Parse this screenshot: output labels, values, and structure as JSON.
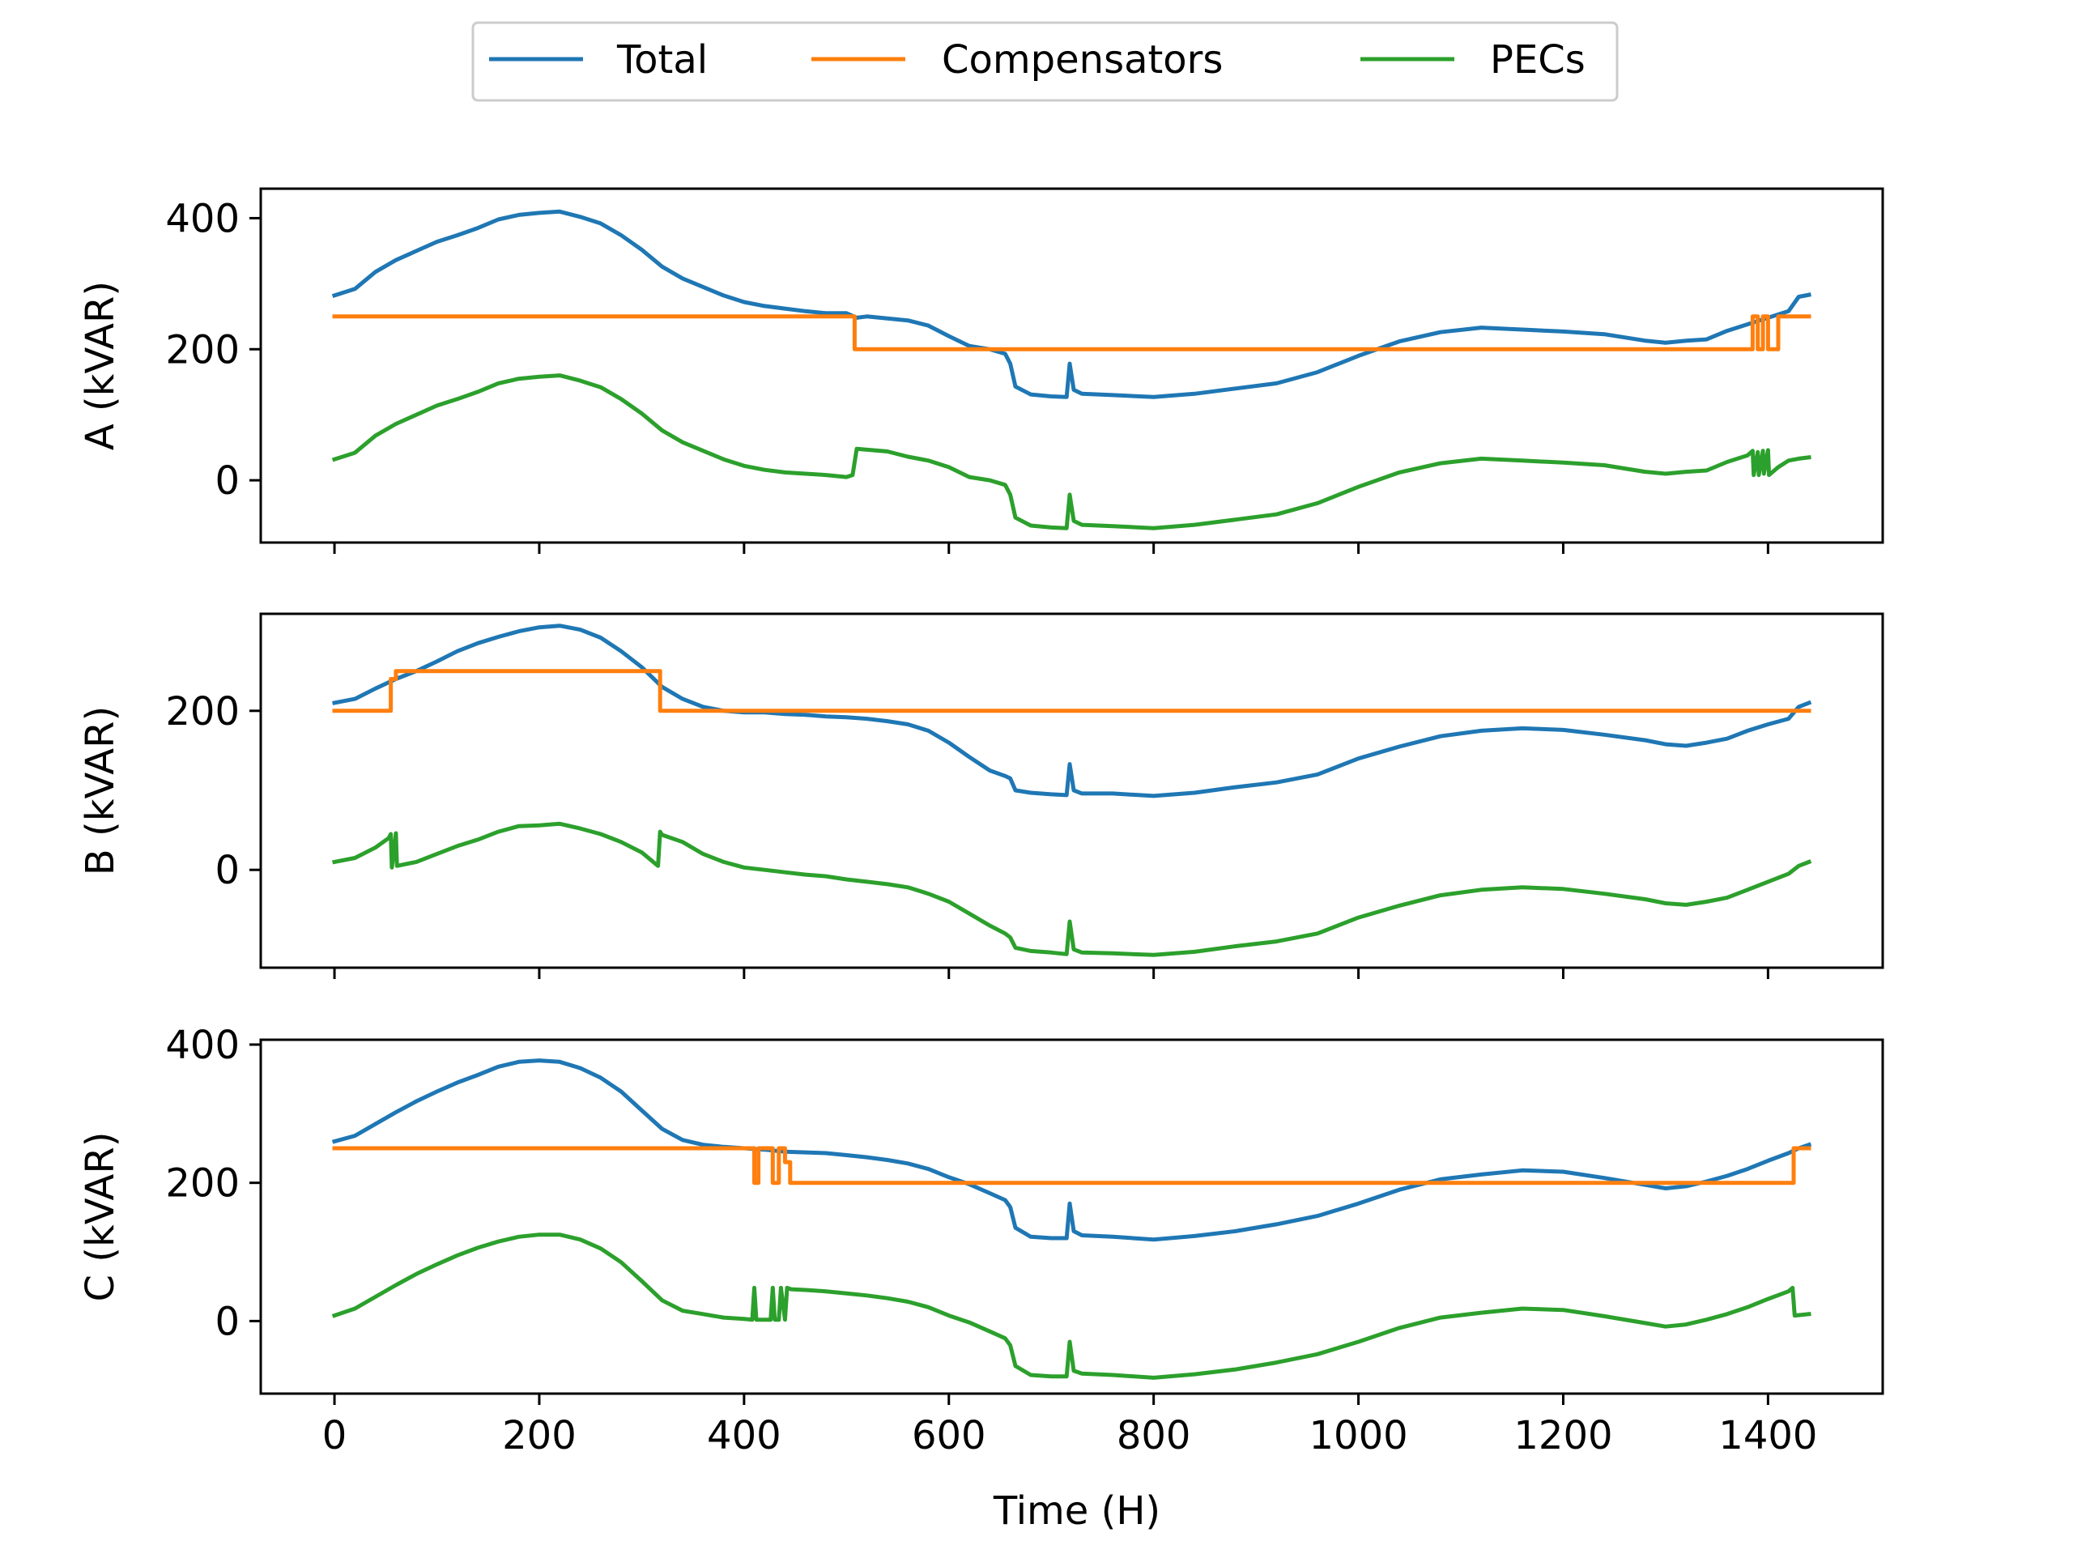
{
  "chart_data": {
    "type": "line",
    "xlabel": "Time (H)",
    "x_ticks": [
      0,
      200,
      400,
      600,
      800,
      1000,
      1200,
      1400
    ],
    "xlim": [
      -72,
      1512
    ],
    "legend": {
      "placement": "top-center",
      "entries": [
        {
          "label": "Total",
          "color": "#1f77b4"
        },
        {
          "label": "Compensators",
          "color": "#ff7f0e"
        },
        {
          "label": "PECs",
          "color": "#2ca02c"
        }
      ]
    },
    "panels": [
      {
        "ylabel": "A (kVAR)",
        "ylim": [
          -95,
          445
        ],
        "y_ticks": [
          0,
          200,
          400
        ],
        "series": [
          {
            "name": "Total",
            "x": [
              0,
              20,
              40,
              60,
              80,
              100,
              120,
              140,
              160,
              180,
              200,
              220,
              240,
              260,
              280,
              300,
              320,
              340,
              360,
              380,
              400,
              420,
              440,
              460,
              480,
              500,
              510,
              520,
              540,
              560,
              580,
              600,
              620,
              640,
              655,
              660,
              665,
              680,
              700,
              715,
              718,
              722,
              730,
              760,
              800,
              840,
              880,
              920,
              960,
              1000,
              1040,
              1080,
              1120,
              1160,
              1200,
              1240,
              1280,
              1300,
              1320,
              1340,
              1360,
              1380,
              1400,
              1420,
              1430,
              1440
            ],
            "y": [
              282,
              292,
              318,
              336,
              350,
              364,
              374,
              385,
              398,
              405,
              408,
              410,
              402,
              392,
              374,
              352,
              326,
              308,
              295,
              282,
              272,
              266,
              262,
              258,
              255,
              255,
              248,
              250,
              247,
              244,
              236,
              220,
              205,
              200,
              193,
              178,
              143,
              131,
              128,
              127,
              178,
              138,
              132,
              130,
              127,
              132,
              140,
              148,
              165,
              190,
              212,
              226,
              233,
              230,
              227,
              223,
              213,
              210,
              213,
              215,
              228,
              238,
              248,
              258,
              280,
              283
            ]
          },
          {
            "name": "Compensators",
            "x": [
              0,
              508,
              508,
              1385,
              1385,
              1390,
              1390,
              1395,
              1395,
              1400,
              1400,
              1410,
              1410,
              1440
            ],
            "y": [
              250,
              250,
              200,
              200,
              250,
              250,
              200,
              200,
              250,
              250,
              200,
              200,
              250,
              250
            ]
          },
          {
            "name": "PECs",
            "x": [
              0,
              20,
              40,
              60,
              80,
              100,
              120,
              140,
              160,
              180,
              200,
              220,
              240,
              260,
              280,
              300,
              320,
              340,
              360,
              380,
              400,
              420,
              440,
              460,
              480,
              500,
              506,
              510,
              540,
              560,
              580,
              600,
              620,
              640,
              655,
              660,
              665,
              680,
              700,
              715,
              718,
              722,
              730,
              760,
              800,
              840,
              880,
              920,
              960,
              1000,
              1040,
              1080,
              1120,
              1160,
              1200,
              1240,
              1280,
              1300,
              1320,
              1340,
              1360,
              1380,
              1385,
              1386,
              1390,
              1391,
              1395,
              1396,
              1400,
              1401,
              1410,
              1420,
              1430,
              1440
            ],
            "y": [
              32,
              42,
              68,
              86,
              100,
              114,
              124,
              135,
              148,
              155,
              158,
              160,
              152,
              142,
              124,
              102,
              76,
              58,
              45,
              32,
              22,
              16,
              12,
              10,
              8,
              5,
              8,
              48,
              44,
              36,
              30,
              20,
              5,
              0,
              -7,
              -22,
              -57,
              -69,
              -72,
              -73,
              -22,
              -62,
              -68,
              -70,
              -73,
              -68,
              -60,
              -52,
              -35,
              -10,
              12,
              26,
              33,
              30,
              27,
              23,
              13,
              10,
              13,
              15,
              28,
              38,
              45,
              8,
              43,
              8,
              45,
              10,
              46,
              8,
              20,
              30,
              33,
              35
            ]
          }
        ]
      },
      {
        "ylabel": "B (kVAR)",
        "ylim": [
          -123,
          322
        ],
        "y_ticks": [
          0,
          200
        ],
        "series": [
          {
            "name": "Total",
            "x": [
              0,
              20,
              40,
              60,
              80,
              100,
              120,
              140,
              160,
              180,
              200,
              220,
              240,
              260,
              280,
              300,
              320,
              340,
              360,
              380,
              400,
              420,
              440,
              460,
              480,
              500,
              520,
              540,
              560,
              580,
              600,
              620,
              640,
              655,
              660,
              665,
              680,
              700,
              715,
              718,
              722,
              730,
              760,
              800,
              840,
              880,
              920,
              960,
              1000,
              1040,
              1080,
              1120,
              1160,
              1200,
              1240,
              1280,
              1300,
              1320,
              1340,
              1360,
              1380,
              1400,
              1420,
              1430,
              1440
            ],
            "y": [
              210,
              215,
              228,
              240,
              250,
              262,
              275,
              285,
              293,
              300,
              305,
              307,
              302,
              292,
              275,
              255,
              230,
              215,
              205,
              200,
              198,
              198,
              196,
              195,
              193,
              192,
              190,
              187,
              183,
              175,
              160,
              142,
              125,
              118,
              115,
              100,
              97,
              95,
              94,
              133,
              100,
              96,
              96,
              93,
              97,
              104,
              110,
              120,
              140,
              155,
              168,
              175,
              178,
              176,
              170,
              163,
              158,
              156,
              160,
              165,
              175,
              183,
              190,
              205,
              210
            ]
          },
          {
            "name": "Compensators",
            "x": [
              0,
              55,
              55,
              60,
              60,
              318,
              318,
              1440
            ],
            "y": [
              200,
              200,
              240,
              240,
              250,
              250,
              200,
              200
            ]
          },
          {
            "name": "PECs",
            "x": [
              0,
              20,
              40,
              53,
              55,
              56,
              60,
              61,
              80,
              100,
              120,
              140,
              160,
              180,
              200,
              220,
              240,
              260,
              280,
              300,
              316,
              318,
              320,
              340,
              360,
              380,
              400,
              420,
              440,
              460,
              480,
              500,
              520,
              540,
              560,
              580,
              600,
              620,
              640,
              655,
              660,
              665,
              680,
              700,
              715,
              718,
              722,
              730,
              760,
              800,
              840,
              880,
              920,
              960,
              1000,
              1040,
              1080,
              1120,
              1160,
              1200,
              1240,
              1280,
              1300,
              1320,
              1340,
              1360,
              1380,
              1400,
              1420,
              1430,
              1440
            ],
            "y": [
              10,
              15,
              28,
              40,
              45,
              3,
              46,
              5,
              10,
              20,
              30,
              38,
              48,
              55,
              56,
              58,
              52,
              45,
              35,
              22,
              5,
              48,
              44,
              35,
              20,
              10,
              3,
              0,
              -3,
              -6,
              -8,
              -12,
              -15,
              -18,
              -22,
              -30,
              -40,
              -55,
              -70,
              -80,
              -85,
              -98,
              -102,
              -104,
              -106,
              -65,
              -100,
              -104,
              -105,
              -107,
              -103,
              -96,
              -90,
              -80,
              -60,
              -45,
              -32,
              -25,
              -22,
              -24,
              -30,
              -37,
              -42,
              -44,
              -40,
              -35,
              -25,
              -15,
              -5,
              5,
              10
            ]
          }
        ]
      },
      {
        "ylabel": "C (kVAR)",
        "ylim": [
          -105,
          407
        ],
        "y_ticks": [
          0,
          200,
          400
        ],
        "series": [
          {
            "name": "Total",
            "x": [
              0,
              20,
              40,
              60,
              80,
              100,
              120,
              140,
              160,
              180,
              200,
              220,
              240,
              260,
              280,
              300,
              320,
              340,
              360,
              380,
              400,
              420,
              440,
              460,
              480,
              500,
              520,
              540,
              560,
              580,
              600,
              620,
              640,
              655,
              660,
              665,
              680,
              700,
              715,
              718,
              722,
              730,
              760,
              800,
              840,
              880,
              920,
              960,
              1000,
              1040,
              1080,
              1120,
              1160,
              1200,
              1240,
              1280,
              1300,
              1320,
              1340,
              1360,
              1380,
              1400,
              1420,
              1430,
              1440
            ],
            "y": [
              260,
              268,
              285,
              302,
              318,
              332,
              345,
              356,
              368,
              375,
              377,
              375,
              366,
              352,
              332,
              305,
              278,
              262,
              255,
              252,
              250,
              248,
              245,
              244,
              243,
              240,
              237,
              233,
              228,
              220,
              208,
              198,
              185,
              175,
              165,
              135,
              122,
              120,
              120,
              170,
              130,
              124,
              122,
              118,
              123,
              130,
              140,
              152,
              170,
              190,
              205,
              212,
              218,
              216,
              207,
              197,
              192,
              195,
              202,
              210,
              220,
              232,
              243,
              250,
              255
            ]
          },
          {
            "name": "Compensators",
            "x": [
              0,
              410,
              410,
              414,
              414,
              428,
              428,
              434,
              434,
              440,
              440,
              445,
              445,
              1425,
              1425,
              1440
            ],
            "y": [
              250,
              250,
              200,
              200,
              250,
              250,
              200,
              200,
              250,
              250,
              230,
              230,
              200,
              200,
              250,
              250
            ]
          },
          {
            "name": "PECs",
            "x": [
              0,
              20,
              40,
              60,
              80,
              100,
              120,
              140,
              160,
              180,
              200,
              220,
              240,
              260,
              280,
              300,
              320,
              340,
              360,
              380,
              400,
              408,
              410,
              412,
              414,
              426,
              428,
              430,
              434,
              436,
              440,
              442,
              446,
              460,
              480,
              500,
              520,
              540,
              560,
              580,
              600,
              620,
              640,
              655,
              660,
              665,
              680,
              700,
              715,
              718,
              722,
              730,
              760,
              800,
              840,
              880,
              920,
              960,
              1000,
              1040,
              1080,
              1120,
              1160,
              1200,
              1240,
              1280,
              1300,
              1320,
              1340,
              1360,
              1380,
              1400,
              1420,
              1424,
              1426,
              1440
            ],
            "y": [
              8,
              18,
              35,
              52,
              68,
              82,
              95,
              106,
              115,
              122,
              125,
              125,
              118,
              105,
              85,
              58,
              30,
              15,
              10,
              5,
              3,
              2,
              48,
              2,
              2,
              2,
              48,
              2,
              2,
              48,
              2,
              48,
              46,
              45,
              43,
              40,
              37,
              33,
              28,
              20,
              8,
              -2,
              -15,
              -25,
              -35,
              -65,
              -78,
              -80,
              -80,
              -30,
              -72,
              -76,
              -78,
              -82,
              -77,
              -70,
              -60,
              -48,
              -30,
              -10,
              5,
              12,
              18,
              16,
              7,
              -3,
              -8,
              -5,
              2,
              10,
              20,
              32,
              43,
              48,
              8,
              10
            ]
          }
        ]
      }
    ]
  }
}
